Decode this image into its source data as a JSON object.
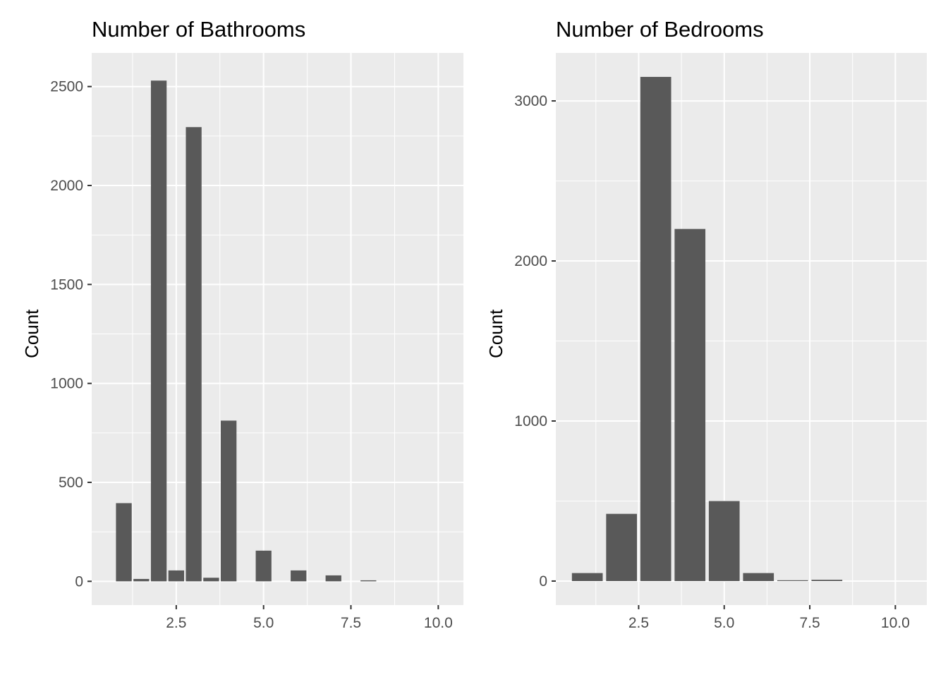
{
  "chart_data": [
    {
      "type": "bar",
      "title": "Number of Bathrooms",
      "xlabel": "",
      "ylabel": "Count",
      "x": [
        1,
        1.5,
        2,
        2.5,
        3,
        3.5,
        4,
        5,
        6,
        7,
        8
      ],
      "values": [
        395,
        12,
        2530,
        55,
        2295,
        18,
        812,
        155,
        55,
        30,
        5
      ],
      "bar_width": 0.45,
      "xlim": [
        0.08,
        10.72
      ],
      "ylim": [
        -120,
        2670
      ],
      "xticks": [
        2.5,
        5.0,
        7.5,
        10.0
      ],
      "xtick_labels": [
        "2.5",
        "5.0",
        "7.5",
        "10.0"
      ],
      "yticks": [
        0,
        500,
        1000,
        1500,
        2000,
        2500
      ],
      "ytick_labels": [
        "0",
        "500",
        "1000",
        "1500",
        "2000",
        "2500"
      ],
      "grid": true,
      "bar_color": "#595959",
      "panel_color": "#ebebeb"
    },
    {
      "type": "bar",
      "title": "Number of Bedrooms",
      "xlabel": "",
      "ylabel": "Count",
      "x": [
        1,
        2,
        3,
        4,
        5,
        6,
        7,
        8
      ],
      "values": [
        50,
        420,
        3150,
        2200,
        500,
        50,
        5,
        8
      ],
      "bar_width": 0.9,
      "xlim": [
        0.08,
        10.92
      ],
      "ylim": [
        -150,
        3300
      ],
      "xticks": [
        2.5,
        5.0,
        7.5,
        10.0
      ],
      "xtick_labels": [
        "2.5",
        "5.0",
        "7.5",
        "10.0"
      ],
      "yticks": [
        0,
        1000,
        2000,
        3000
      ],
      "ytick_labels": [
        "0",
        "1000",
        "2000",
        "3000"
      ],
      "grid": true,
      "bar_color": "#595959",
      "panel_color": "#ebebeb"
    }
  ]
}
